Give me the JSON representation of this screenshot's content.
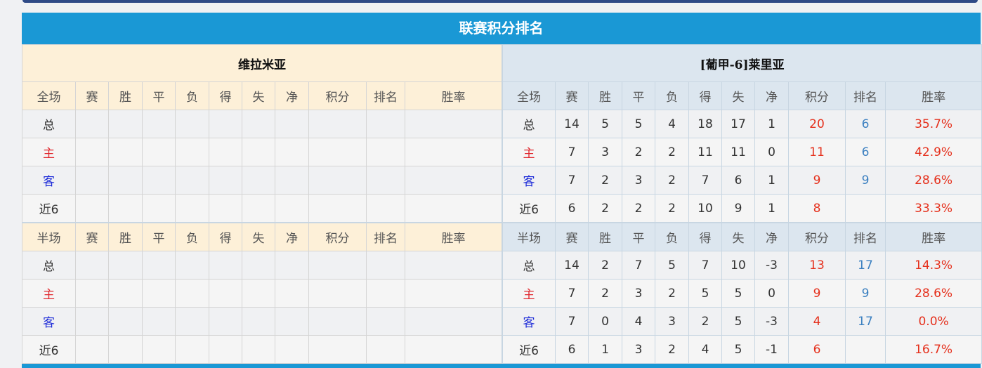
{
  "title": "联赛积分排名",
  "columns": [
    "赛",
    "胜",
    "平",
    "负",
    "得",
    "失",
    "净",
    "积分",
    "排名",
    "胜率"
  ],
  "home": {
    "name": "维拉米亚",
    "full": {
      "label": "全场",
      "rows": [
        [
          "总"
        ],
        [
          "主"
        ],
        [
          "客"
        ],
        [
          "近6"
        ]
      ]
    },
    "half": {
      "label": "半场",
      "rows": [
        [
          "总"
        ],
        [
          "主"
        ],
        [
          "客"
        ],
        [
          "近6"
        ]
      ]
    }
  },
  "away": {
    "name": "[葡甲-6]莱里亚",
    "full": {
      "label": "全场",
      "rows": [
        [
          "总",
          "14",
          "5",
          "5",
          "4",
          "18",
          "17",
          "1",
          "20",
          "6",
          "35.7%"
        ],
        [
          "主",
          "7",
          "3",
          "2",
          "2",
          "11",
          "11",
          "0",
          "11",
          "6",
          "42.9%"
        ],
        [
          "客",
          "7",
          "2",
          "3",
          "2",
          "7",
          "6",
          "1",
          "9",
          "9",
          "28.6%"
        ],
        [
          "近6",
          "6",
          "2",
          "2",
          "2",
          "10",
          "9",
          "1",
          "8",
          "",
          "33.3%"
        ]
      ]
    },
    "half": {
      "label": "半场",
      "rows": [
        [
          "总",
          "14",
          "2",
          "7",
          "5",
          "7",
          "10",
          "-3",
          "13",
          "17",
          "14.3%"
        ],
        [
          "主",
          "7",
          "2",
          "3",
          "2",
          "5",
          "5",
          "0",
          "9",
          "9",
          "28.6%"
        ],
        [
          "客",
          "7",
          "0",
          "4",
          "3",
          "2",
          "5",
          "-3",
          "4",
          "17",
          "0.0%"
        ],
        [
          "近6",
          "6",
          "1",
          "3",
          "2",
          "4",
          "5",
          "-1",
          "6",
          "",
          "16.7%"
        ]
      ]
    }
  },
  "colors": {
    "title_bar": "#1a98d5",
    "home_header": "#fdf0d8",
    "away_header": "#dce6ef",
    "points": "#e5301c",
    "rank": "#3a7fc0"
  }
}
